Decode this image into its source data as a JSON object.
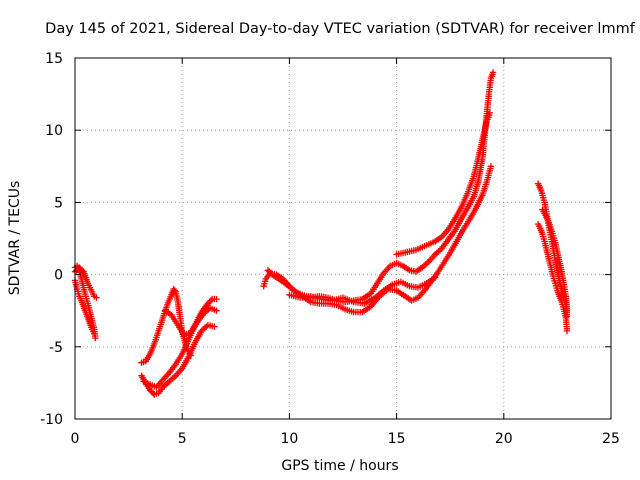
{
  "chart_data": {
    "type": "scatter",
    "title": "Day 145 of 2021, Sidereal Day-to-day VTEC variation (SDTVAR) for receiver lmmf",
    "xlabel": "GPS time / hours",
    "ylabel": "SDTVAR / TECUs",
    "xlim": [
      0,
      25
    ],
    "ylim": [
      -10,
      15
    ],
    "xticks": [
      0,
      5,
      10,
      15,
      20,
      25
    ],
    "xtick_labels": [
      "0",
      "5",
      "10",
      "15",
      "20",
      "25"
    ],
    "yticks": [
      -10,
      -5,
      0,
      5,
      10,
      15
    ],
    "ytick_labels": [
      "-10",
      "-5",
      "0",
      "5",
      "10",
      "15"
    ],
    "grid": true,
    "marker": "plus",
    "series": [
      {
        "name": "SDTVAR",
        "color": "#ff0000",
        "tracks": [
          [
            [
              0.0,
              0.5
            ],
            [
              0.1,
              0.6
            ],
            [
              0.2,
              0.3
            ],
            [
              0.3,
              -0.3
            ],
            [
              0.4,
              -0.9
            ],
            [
              0.5,
              -1.5
            ],
            [
              0.6,
              -2.0
            ],
            [
              0.7,
              -2.6
            ],
            [
              0.8,
              -3.2
            ],
            [
              0.9,
              -3.8
            ],
            [
              0.95,
              -4.4
            ]
          ],
          [
            [
              0.0,
              -0.4
            ],
            [
              0.1,
              -1.0
            ],
            [
              0.2,
              -1.5
            ],
            [
              0.3,
              -1.8
            ],
            [
              0.4,
              -2.2
            ],
            [
              0.5,
              -2.6
            ],
            [
              0.6,
              -3.0
            ],
            [
              0.7,
              -3.4
            ],
            [
              0.8,
              -3.8
            ],
            [
              0.9,
              -4.1
            ]
          ],
          [
            [
              0.0,
              0.2
            ],
            [
              0.2,
              0.5
            ],
            [
              0.4,
              0.2
            ],
            [
              0.5,
              -0.2
            ],
            [
              0.6,
              -0.6
            ],
            [
              0.7,
              -0.9
            ],
            [
              0.8,
              -1.2
            ],
            [
              0.9,
              -1.5
            ],
            [
              1.0,
              -1.6
            ]
          ],
          [
            [
              3.1,
              -6.1
            ],
            [
              3.3,
              -6.0
            ],
            [
              3.5,
              -5.5
            ],
            [
              3.7,
              -4.8
            ],
            [
              3.9,
              -3.9
            ],
            [
              4.1,
              -3.0
            ],
            [
              4.3,
              -2.1
            ],
            [
              4.5,
              -1.4
            ],
            [
              4.6,
              -1.0
            ],
            [
              4.7,
              -1.2
            ],
            [
              4.8,
              -1.9
            ],
            [
              4.9,
              -2.9
            ],
            [
              5.0,
              -4.0
            ],
            [
              5.2,
              -5.0
            ],
            [
              5.4,
              -5.6
            ]
          ],
          [
            [
              3.1,
              -7.0
            ],
            [
              3.3,
              -7.5
            ],
            [
              3.5,
              -8.0
            ],
            [
              3.7,
              -8.3
            ],
            [
              3.9,
              -8.2
            ],
            [
              4.1,
              -7.8
            ],
            [
              4.4,
              -7.4
            ],
            [
              4.7,
              -7.0
            ],
            [
              5.0,
              -6.5
            ],
            [
              5.3,
              -5.7
            ],
            [
              5.6,
              -4.7
            ],
            [
              5.9,
              -3.9
            ],
            [
              6.2,
              -3.5
            ],
            [
              6.5,
              -3.6
            ]
          ],
          [
            [
              3.2,
              -7.4
            ],
            [
              3.5,
              -7.6
            ],
            [
              3.8,
              -7.8
            ],
            [
              4.1,
              -7.3
            ],
            [
              4.4,
              -6.8
            ],
            [
              4.7,
              -6.2
            ],
            [
              5.0,
              -5.5
            ],
            [
              5.3,
              -4.5
            ],
            [
              5.6,
              -3.5
            ],
            [
              5.9,
              -2.6
            ],
            [
              6.2,
              -2.0
            ],
            [
              6.4,
              -1.7
            ],
            [
              6.6,
              -1.7
            ]
          ],
          [
            [
              4.2,
              -2.5
            ],
            [
              4.5,
              -2.8
            ],
            [
              4.8,
              -3.5
            ],
            [
              5.1,
              -4.2
            ],
            [
              5.4,
              -4.0
            ],
            [
              5.7,
              -3.3
            ],
            [
              6.0,
              -2.7
            ],
            [
              6.3,
              -2.3
            ],
            [
              6.6,
              -2.5
            ]
          ],
          [
            [
              8.8,
              -0.8
            ],
            [
              8.9,
              -0.3
            ],
            [
              9.1,
              0.1
            ],
            [
              9.4,
              0.0
            ],
            [
              9.7,
              -0.3
            ],
            [
              10.0,
              -0.8
            ],
            [
              10.3,
              -1.2
            ],
            [
              10.6,
              -1.4
            ],
            [
              11.0,
              -1.6
            ],
            [
              11.4,
              -1.5
            ],
            [
              11.8,
              -1.6
            ],
            [
              12.2,
              -1.8
            ],
            [
              12.6,
              -1.9
            ],
            [
              13.0,
              -1.8
            ],
            [
              13.4,
              -1.7
            ],
            [
              13.8,
              -1.3
            ],
            [
              14.1,
              -0.6
            ],
            [
              14.4,
              0.1
            ],
            [
              14.7,
              0.6
            ],
            [
              15.0,
              0.8
            ],
            [
              15.3,
              0.6
            ],
            [
              15.6,
              0.3
            ],
            [
              15.9,
              0.2
            ],
            [
              16.2,
              0.5
            ],
            [
              16.5,
              0.9
            ],
            [
              16.8,
              1.4
            ],
            [
              17.1,
              1.8
            ],
            [
              17.4,
              2.4
            ],
            [
              17.7,
              3.0
            ],
            [
              18.0,
              3.8
            ],
            [
              18.3,
              4.6
            ],
            [
              18.6,
              5.4
            ],
            [
              18.8,
              6.4
            ],
            [
              19.0,
              8.0
            ],
            [
              19.1,
              9.5
            ],
            [
              19.2,
              11.0
            ],
            [
              19.3,
              12.5
            ],
            [
              19.4,
              13.6
            ],
            [
              19.5,
              14.0
            ]
          ],
          [
            [
              9.0,
              0.3
            ],
            [
              9.2,
              0.0
            ],
            [
              9.5,
              -0.3
            ],
            [
              9.8,
              -0.6
            ],
            [
              10.2,
              -1.1
            ],
            [
              10.6,
              -1.5
            ],
            [
              11.0,
              -1.9
            ],
            [
              11.4,
              -2.0
            ],
            [
              11.8,
              -2.0
            ],
            [
              12.2,
              -2.1
            ],
            [
              12.6,
              -2.4
            ],
            [
              13.0,
              -2.6
            ],
            [
              13.4,
              -2.6
            ],
            [
              13.8,
              -2.2
            ],
            [
              14.2,
              -1.5
            ],
            [
              14.6,
              -1.0
            ],
            [
              15.0,
              -1.1
            ],
            [
              15.4,
              -1.5
            ],
            [
              15.7,
              -1.8
            ],
            [
              16.0,
              -1.6
            ],
            [
              16.3,
              -1.1
            ],
            [
              16.6,
              -0.5
            ],
            [
              16.9,
              0.1
            ],
            [
              17.2,
              0.8
            ],
            [
              17.5,
              1.5
            ],
            [
              17.8,
              2.3
            ],
            [
              18.1,
              3.1
            ],
            [
              18.4,
              3.8
            ],
            [
              18.7,
              4.6
            ],
            [
              19.0,
              5.5
            ],
            [
              19.2,
              6.4
            ],
            [
              19.4,
              7.5
            ]
          ],
          [
            [
              10.0,
              -1.4
            ],
            [
              10.5,
              -1.6
            ],
            [
              11.0,
              -1.5
            ],
            [
              11.5,
              -1.7
            ],
            [
              12.0,
              -1.8
            ],
            [
              12.5,
              -1.6
            ],
            [
              13.0,
              -1.9
            ],
            [
              13.5,
              -2.0
            ],
            [
              14.0,
              -1.6
            ],
            [
              14.4,
              -1.1
            ],
            [
              14.8,
              -0.7
            ],
            [
              15.2,
              -0.5
            ],
            [
              15.6,
              -0.8
            ],
            [
              16.0,
              -0.9
            ],
            [
              16.4,
              -0.6
            ],
            [
              16.8,
              -0.2
            ]
          ],
          [
            [
              15.0,
              1.4
            ],
            [
              15.3,
              1.5
            ],
            [
              15.6,
              1.6
            ],
            [
              15.9,
              1.7
            ],
            [
              16.2,
              1.9
            ],
            [
              16.5,
              2.1
            ],
            [
              16.8,
              2.3
            ],
            [
              17.1,
              2.6
            ],
            [
              17.4,
              3.1
            ],
            [
              17.7,
              3.8
            ],
            [
              18.0,
              4.6
            ],
            [
              18.3,
              5.6
            ],
            [
              18.6,
              6.8
            ],
            [
              18.8,
              8.0
            ],
            [
              19.0,
              9.3
            ],
            [
              19.2,
              10.6
            ],
            [
              19.35,
              11.2
            ]
          ],
          [
            [
              21.6,
              6.3
            ],
            [
              21.75,
              5.8
            ],
            [
              21.9,
              5.0
            ],
            [
              22.0,
              4.2
            ],
            [
              22.1,
              3.4
            ],
            [
              22.2,
              2.6
            ],
            [
              22.3,
              1.8
            ],
            [
              22.4,
              1.0
            ],
            [
              22.5,
              0.3
            ],
            [
              22.6,
              -0.4
            ],
            [
              22.7,
              -1.1
            ],
            [
              22.8,
              -1.6
            ],
            [
              22.9,
              -2.2
            ],
            [
              22.95,
              -2.9
            ]
          ],
          [
            [
              21.6,
              3.5
            ],
            [
              21.7,
              3.2
            ],
            [
              21.8,
              2.8
            ],
            [
              21.9,
              2.3
            ],
            [
              22.0,
              1.7
            ],
            [
              22.1,
              1.1
            ],
            [
              22.2,
              0.5
            ],
            [
              22.3,
              -0.1
            ],
            [
              22.4,
              -0.6
            ],
            [
              22.5,
              -1.1
            ],
            [
              22.6,
              -1.5
            ],
            [
              22.7,
              -1.9
            ],
            [
              22.8,
              -2.4
            ],
            [
              22.9,
              -3.0
            ],
            [
              22.95,
              -3.9
            ]
          ],
          [
            [
              21.8,
              4.5
            ],
            [
              21.95,
              4.1
            ],
            [
              22.1,
              3.6
            ],
            [
              22.25,
              3.0
            ],
            [
              22.4,
              2.2
            ],
            [
              22.55,
              1.2
            ],
            [
              22.7,
              0.2
            ],
            [
              22.8,
              -0.7
            ],
            [
              22.9,
              -1.5
            ],
            [
              22.95,
              -2.5
            ]
          ]
        ]
      }
    ]
  }
}
